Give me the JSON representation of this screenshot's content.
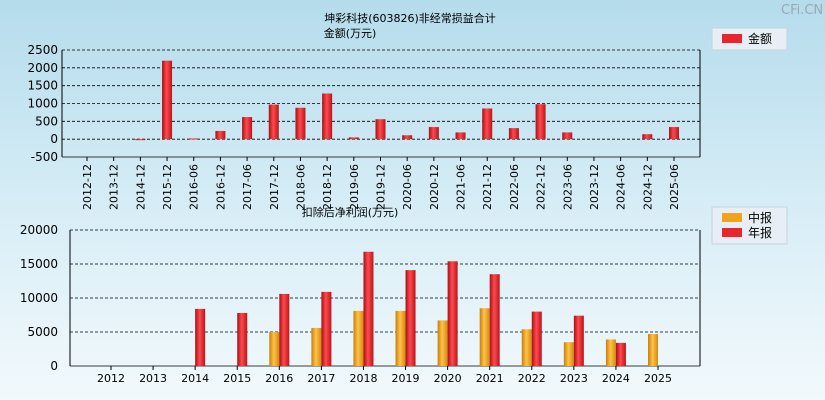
{
  "watermark": "CFi.CN",
  "chart_data": [
    {
      "type": "bar",
      "title": "坤彩科技(603826)非经常损益合计",
      "subtitle": "金额(万元)",
      "legend": [
        "金额"
      ],
      "legend_position": "top-right",
      "colors": {
        "series": "#e8262c"
      },
      "grid": true,
      "ylim": [
        -500,
        2500
      ],
      "yticks": [
        -500,
        0,
        500,
        1000,
        1500,
        2000,
        2500
      ],
      "categories": [
        "2012-12",
        "2013-12",
        "2014-12",
        "2015-12",
        "2016-06",
        "2016-12",
        "2017-06",
        "2017-12",
        "2018-06",
        "2018-12",
        "2019-06",
        "2019-12",
        "2020-06",
        "2020-12",
        "2021-06",
        "2021-12",
        "2022-06",
        "2022-12",
        "2023-06",
        "2023-12",
        "2024-06",
        "2024-12",
        "2025-06"
      ],
      "series": [
        {
          "name": "金额",
          "values": [
            0,
            0,
            -20,
            2200,
            20,
            230,
            620,
            970,
            880,
            1280,
            50,
            560,
            110,
            340,
            190,
            860,
            310,
            980,
            190,
            0,
            0,
            140,
            340
          ]
        }
      ]
    },
    {
      "type": "bar",
      "title": "扣除后净利润(万元)",
      "legend": [
        "中报",
        "年报"
      ],
      "legend_position": "top-right",
      "colors": {
        "中报": "#f0a31c",
        "年报": "#e8262c"
      },
      "grid": true,
      "ylim": [
        0,
        20000
      ],
      "yticks": [
        0,
        5000,
        10000,
        15000,
        20000
      ],
      "categories": [
        "2012",
        "2013",
        "2014",
        "2015",
        "2016",
        "2017",
        "2018",
        "2019",
        "2020",
        "2021",
        "2022",
        "2023",
        "2024",
        "2025"
      ],
      "series": [
        {
          "name": "中报",
          "values": [
            null,
            null,
            null,
            null,
            5000,
            5600,
            8100,
            8100,
            6700,
            8500,
            5400,
            3500,
            3900,
            4700
          ]
        },
        {
          "name": "年报",
          "values": [
            null,
            null,
            8400,
            7800,
            10600,
            10900,
            16800,
            14100,
            15400,
            13500,
            8000,
            7400,
            3400,
            null
          ]
        }
      ]
    }
  ]
}
